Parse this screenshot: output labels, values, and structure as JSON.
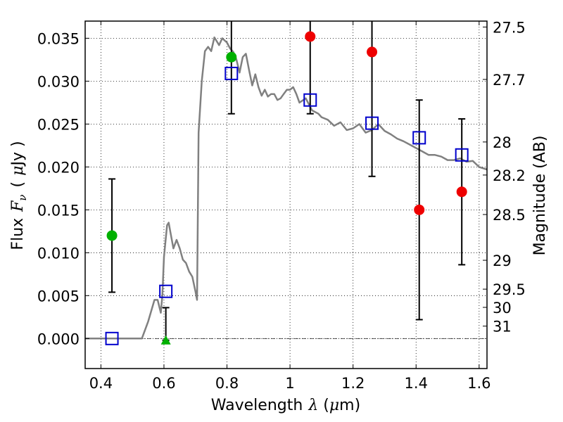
{
  "chart_data": {
    "type": "scatter",
    "xlabel_pre": "Wavelength",
    "xlabel_math": "λ",
    "xlabel_post": "(",
    "xlabel_unit_math": "μ",
    "xlabel_unit": "m)",
    "ylabel_pre": "Flux",
    "ylabel_math_F": "F",
    "ylabel_math_nu": "ν",
    "ylabel_paren_open": "(",
    "ylabel_unit_math": "μ",
    "ylabel_unit": "Jy )",
    "y2label": "Magnitude (AB)",
    "xlim": [
      0.35,
      1.625
    ],
    "ylim": [
      -0.0035,
      0.037
    ],
    "grid": true,
    "xticks": [
      0.4,
      0.6,
      0.8,
      1.0,
      1.2,
      1.4,
      1.6
    ],
    "xtick_labels": [
      "0.4",
      "0.6",
      "0.8",
      "1",
      "1.2",
      "1.4",
      "1.6"
    ],
    "yticks": [
      0.0,
      0.005,
      0.01,
      0.015,
      0.02,
      0.025,
      0.03,
      0.035
    ],
    "ytick_labels": [
      "0.000",
      "0.005",
      "0.010",
      "0.015",
      "0.020",
      "0.025",
      "0.030",
      "0.035"
    ],
    "mag_ticks": [
      27.5,
      27.7,
      28,
      28.2,
      28.5,
      29,
      29.5,
      30,
      31
    ],
    "mag_tick_labels": [
      "27.5",
      "27.7",
      "28",
      "28.2",
      "28.5",
      "29",
      "29.5",
      "30",
      "31"
    ],
    "colors": {
      "model": "#808080",
      "green": "#00b000",
      "red": "#ee0000",
      "square": "#0000cc",
      "errorbar": "#000000"
    },
    "model_spectrum": {
      "x": [
        0.35,
        0.53,
        0.55,
        0.57,
        0.58,
        0.59,
        0.595,
        0.6,
        0.61,
        0.615,
        0.62,
        0.63,
        0.64,
        0.65,
        0.66,
        0.67,
        0.68,
        0.69,
        0.7,
        0.705,
        0.71,
        0.72,
        0.73,
        0.74,
        0.75,
        0.76,
        0.77,
        0.775,
        0.785,
        0.8,
        0.81,
        0.82,
        0.83,
        0.84,
        0.85,
        0.86,
        0.87,
        0.88,
        0.89,
        0.9,
        0.91,
        0.92,
        0.93,
        0.94,
        0.95,
        0.96,
        0.97,
        0.98,
        0.99,
        1.0,
        1.01,
        1.02,
        1.03,
        1.05,
        1.07,
        1.09,
        1.1,
        1.12,
        1.14,
        1.16,
        1.18,
        1.2,
        1.22,
        1.24,
        1.26,
        1.28,
        1.3,
        1.32,
        1.34,
        1.36,
        1.38,
        1.4,
        1.42,
        1.44,
        1.46,
        1.48,
        1.5,
        1.52,
        1.54,
        1.56,
        1.58,
        1.6,
        1.625
      ],
      "y": [
        0.0,
        0.0,
        0.002,
        0.0045,
        0.0045,
        0.003,
        0.005,
        0.0095,
        0.0132,
        0.0135,
        0.0125,
        0.0105,
        0.0115,
        0.0105,
        0.0092,
        0.0088,
        0.0078,
        0.0072,
        0.0055,
        0.0045,
        0.024,
        0.03,
        0.0335,
        0.034,
        0.0335,
        0.0351,
        0.0345,
        0.0342,
        0.035,
        0.0345,
        0.0338,
        0.0334,
        0.0325,
        0.031,
        0.0328,
        0.0332,
        0.0313,
        0.0295,
        0.0308,
        0.0293,
        0.0283,
        0.029,
        0.0282,
        0.0285,
        0.0285,
        0.0278,
        0.028,
        0.0285,
        0.029,
        0.029,
        0.0293,
        0.0285,
        0.0275,
        0.028,
        0.0266,
        0.0262,
        0.0258,
        0.0255,
        0.0248,
        0.0252,
        0.0243,
        0.0245,
        0.025,
        0.024,
        0.0243,
        0.025,
        0.0242,
        0.0238,
        0.0233,
        0.023,
        0.0226,
        0.0222,
        0.0218,
        0.0214,
        0.0214,
        0.0212,
        0.0208,
        0.0208,
        0.021,
        0.0206,
        0.0207,
        0.02,
        0.0197
      ]
    },
    "series": [
      {
        "name": "green detections",
        "marker": "circle",
        "color": "#00b000",
        "points": [
          {
            "x": 0.435,
            "y": 0.012,
            "err": 0.0066
          },
          {
            "x": 0.814,
            "y": 0.0328,
            "err": 0.0066
          }
        ]
      },
      {
        "name": "green upper limit",
        "marker": "triangle",
        "color": "#00b000",
        "points": [
          {
            "x": 0.606,
            "y": -0.0002,
            "yerr_top": 0.0036,
            "yerr_bottom": -0.0002
          }
        ]
      },
      {
        "name": "red detections",
        "marker": "circle",
        "color": "#ee0000",
        "points": [
          {
            "x": 1.064,
            "y": 0.0352,
            "err": 0.009
          },
          {
            "x": 1.26,
            "y": 0.0334,
            "err": 0.0145
          },
          {
            "x": 1.41,
            "y": 0.015,
            "err": 0.0128
          },
          {
            "x": 1.545,
            "y": 0.0171,
            "err": 0.0085
          }
        ]
      },
      {
        "name": "model synthetic photometry",
        "marker": "open-square",
        "color": "#0000cc",
        "points": [
          {
            "x": 0.435,
            "y": 0.0
          },
          {
            "x": 0.606,
            "y": 0.0055
          },
          {
            "x": 0.814,
            "y": 0.0309
          },
          {
            "x": 1.064,
            "y": 0.0278
          },
          {
            "x": 1.26,
            "y": 0.0251
          },
          {
            "x": 1.41,
            "y": 0.0234
          },
          {
            "x": 1.545,
            "y": 0.0214
          }
        ]
      }
    ]
  }
}
